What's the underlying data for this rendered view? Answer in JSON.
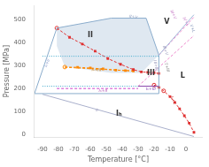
{
  "chart_data": {
    "type": "line",
    "xlabel": "Temperature [°C]",
    "ylabel": "Pressure [MPa]",
    "xlim": [
      -95,
      10
    ],
    "ylim": [
      -10,
      560
    ],
    "xticks": [
      -90,
      -80,
      -70,
      -60,
      -50,
      -40,
      -30,
      -20,
      -10,
      0
    ],
    "yticks": [
      0,
      100,
      200,
      300,
      400,
      500
    ],
    "grid": false,
    "series": [
      {
        "type": "area",
        "x": [
          -81,
          -47,
          -25,
          -17,
          -28,
          -47,
          -76,
          -81
        ],
        "values": [
          462,
          505,
          505,
          345,
          268,
          268,
          295,
          385
        ],
        "color": "#c5d5e5",
        "line_style": "none",
        "marker": "none"
      },
      {
        "type": "line",
        "x": [
          -95,
          -81
        ],
        "values": [
          178,
          462
        ],
        "color": "#8aaccc",
        "line_style": "solid",
        "marker": "none"
      },
      {
        "type": "line",
        "x": [
          -81,
          -47
        ],
        "values": [
          462,
          505
        ],
        "color": "#8aaccc",
        "line_style": "solid",
        "marker": "none"
      },
      {
        "type": "line",
        "x": [
          -47,
          -25
        ],
        "values": [
          505,
          505
        ],
        "color": "#8aaccc",
        "line_style": "solid",
        "marker": "none"
      },
      {
        "type": "line",
        "x": [
          -25,
          -17
        ],
        "values": [
          505,
          345
        ],
        "color": "#8aaccc",
        "line_style": "solid",
        "marker": "none"
      },
      {
        "type": "line",
        "x": [
          -17,
          -17
        ],
        "values": [
          178,
          345
        ],
        "color": "#8aaccc",
        "line_style": "solid",
        "marker": "none"
      },
      {
        "type": "line",
        "x": [
          -95,
          -17
        ],
        "values": [
          178,
          178
        ],
        "color": "#8aaccc",
        "line_style": "solid",
        "marker": "none"
      },
      {
        "type": "line",
        "x": [
          -17,
          5
        ],
        "values": [
          345,
          520
        ],
        "color": "#a0b8d8",
        "line_style": "solid",
        "marker": "none"
      },
      {
        "type": "line",
        "x": [
          -90,
          5
        ],
        "values": [
          175,
          -8
        ],
        "color": "#aab0cc",
        "line_style": "solid",
        "marker": "none"
      },
      {
        "type": "line",
        "x": [
          -81,
          -30
        ],
        "values": [
          200,
          200
        ],
        "color": "#cc44cc",
        "line_style": "dashed",
        "marker": "none"
      },
      {
        "type": "line",
        "x": [
          -30,
          -17
        ],
        "values": [
          210,
          210
        ],
        "color": "#8844aa",
        "line_style": "solid",
        "marker": "none"
      },
      {
        "type": "line",
        "x": [
          -76,
          -33
        ],
        "values": [
          292,
          276
        ],
        "color": "#ff8800",
        "line_style": "dashed",
        "marker": "none"
      },
      {
        "type": "line",
        "x": [
          -30,
          5
        ],
        "values": [
          210,
          430
        ],
        "color": "#ee88cc",
        "line_style": "dashed",
        "marker": "none"
      },
      {
        "type": "line",
        "x": [
          -17,
          5
        ],
        "values": [
          345,
          510
        ],
        "color": "#ee88cc",
        "line_style": "dashed",
        "marker": "none"
      },
      {
        "type": "line",
        "x": [
          -90,
          -17
        ],
        "values": [
          340,
          340
        ],
        "color": "#44aacc",
        "line_style": "dotted",
        "marker": "none"
      },
      {
        "type": "line",
        "x": [
          -90,
          -30
        ],
        "values": [
          210,
          210
        ],
        "color": "#44aacc",
        "line_style": "dotted",
        "marker": "none"
      },
      {
        "type": "line",
        "x": [
          -81,
          -73,
          -65,
          -57,
          -49,
          -41,
          -33,
          -28,
          -24,
          -20,
          -17
        ],
        "values": [
          462,
          422,
          393,
          362,
          330,
          305,
          282,
          272,
          270,
          268,
          265
        ],
        "color": "#e03030",
        "line_style": "dashed",
        "marker": "none"
      },
      {
        "type": "line",
        "x": [
          -73,
          -65,
          -57,
          -49,
          -41,
          -33,
          -28,
          -24,
          -20,
          -17
        ],
        "values": [
          422,
          393,
          362,
          330,
          305,
          282,
          272,
          270,
          268,
          265
        ],
        "color": "#e03030",
        "line_style": "none",
        "marker": "square"
      },
      {
        "type": "line",
        "x": [
          -81
        ],
        "values": [
          462
        ],
        "color": "#e03030",
        "line_style": "none",
        "marker": "open_circle"
      },
      {
        "type": "line",
        "x": [
          -20,
          -17,
          -14,
          -10,
          -7,
          -4,
          -1,
          2,
          5
        ],
        "values": [
          215,
          205,
          190,
          165,
          140,
          112,
          82,
          50,
          10
        ],
        "color": "#e03030",
        "line_style": "dashed",
        "marker": "none"
      },
      {
        "type": "line",
        "x": [
          -17,
          -10,
          -7,
          -4,
          -1,
          2,
          5
        ],
        "values": [
          205,
          165,
          140,
          112,
          82,
          50,
          10
        ],
        "color": "#e03030",
        "line_style": "none",
        "marker": "square"
      },
      {
        "type": "line",
        "x": [
          -20,
          -14
        ],
        "values": [
          215,
          190
        ],
        "color": "#e03030",
        "line_style": "none",
        "marker": "open_circle"
      },
      {
        "type": "line",
        "x": [
          -76,
          -68,
          -60,
          -52,
          -44,
          -38,
          -33
        ],
        "values": [
          293,
          292,
          289,
          285,
          280,
          278,
          276
        ],
        "color": "#ff8800",
        "line_style": "dashed",
        "marker": "none"
      },
      {
        "type": "line",
        "x": [
          -68,
          -60,
          -52,
          -44,
          -38,
          -33
        ],
        "values": [
          292,
          289,
          285,
          280,
          278,
          276
        ],
        "color": "#ff8800",
        "line_style": "none",
        "marker": "square"
      },
      {
        "type": "line",
        "x": [
          -76
        ],
        "values": [
          293
        ],
        "color": "#ff8800",
        "line_style": "none",
        "marker": "open_circle"
      }
    ],
    "region_labels": [
      {
        "text": "II",
        "x": -60,
        "y": 430,
        "color": "#333333"
      },
      {
        "text": "V",
        "x": -12,
        "y": 490,
        "color": "#333333"
      },
      {
        "text": "III",
        "x": -22,
        "y": 268,
        "color": "#333333"
      },
      {
        "text": "L",
        "x": -2,
        "y": 255,
        "color": "#333333"
      },
      {
        "text": "Iₕ",
        "x": -42,
        "y": 90,
        "color": "#333333"
      }
    ],
    "annotations": [
      {
        "text": "Iₕ+II",
        "x": -52,
        "y": 188,
        "color": "#aa44aa"
      },
      {
        "text": "Iₕ+IV",
        "x": -56,
        "y": 280,
        "color": "#cc7700"
      },
      {
        "text": "Iₕ+III",
        "x": -22,
        "y": 198,
        "color": "#7733aa"
      },
      {
        "text": "Iₕ+L",
        "x": -8,
        "y": 148,
        "color": "#cc3333"
      },
      {
        "text": "II+V",
        "x": -33,
        "y": 510,
        "color": "#8899bb"
      },
      {
        "text": "III+V",
        "x": -13,
        "y": 365,
        "color": "#9999bb"
      },
      {
        "text": "III+III",
        "x": -19,
        "y": 300,
        "color": "#9999bb"
      },
      {
        "text": "IV+L",
        "x": 0,
        "y": 490,
        "color": "#cc88cc"
      },
      {
        "text": "V+L",
        "x": 4,
        "y": 460,
        "color": "#8899bb"
      },
      {
        "text": "T+III",
        "x": -12,
        "y": 292,
        "color": "#888888"
      },
      {
        "text": "δ",
        "x": -56,
        "y": 105,
        "color": "#9999bb"
      },
      {
        "text": "Iₕ+II",
        "x": -87,
        "y": 310,
        "color": "#8899cc"
      },
      {
        "text": "III+V",
        "x": -8,
        "y": 520,
        "color": "#cc88cc"
      }
    ]
  }
}
